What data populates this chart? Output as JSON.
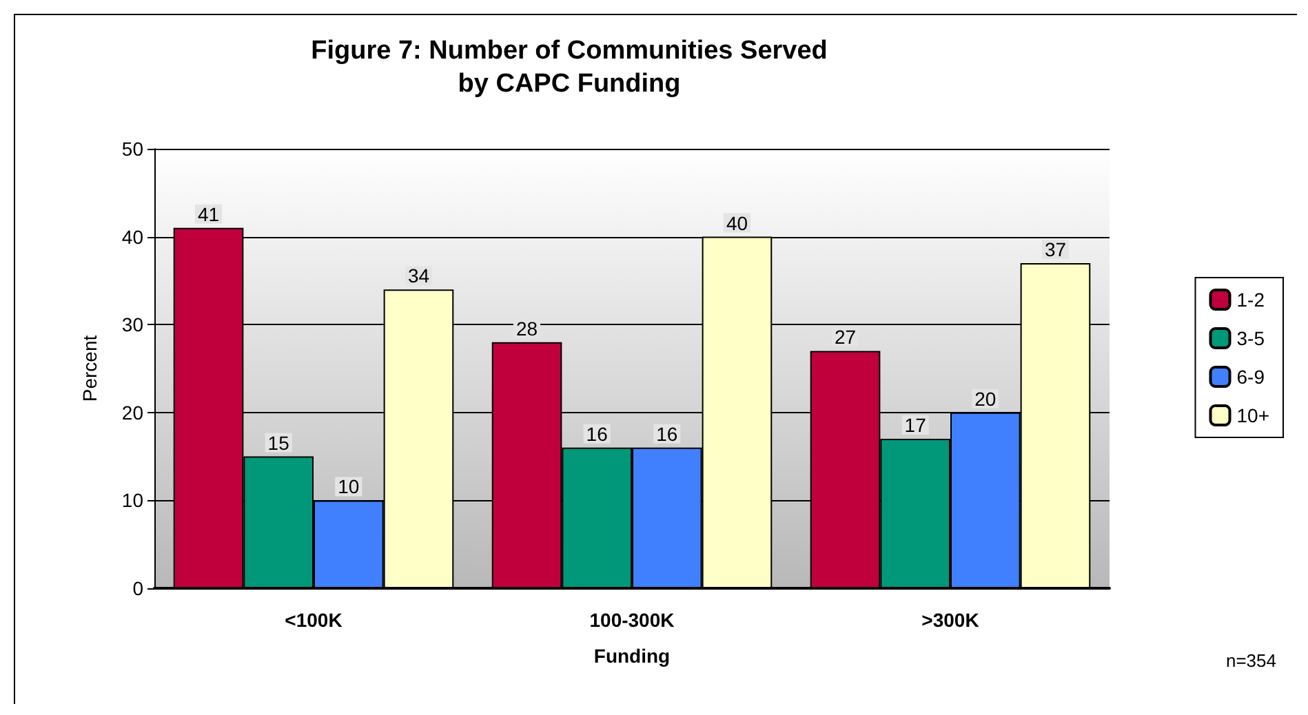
{
  "chart_data": {
    "type": "bar",
    "title": "Figure 7: Number of Communities Served\nby CAPC Funding",
    "xlabel": "Funding",
    "ylabel": "Percent",
    "categories": [
      "<100K",
      "100-300K",
      ">300K"
    ],
    "series": [
      {
        "name": "1-2",
        "color": "#c0003c",
        "values": [
          41,
          28,
          27
        ]
      },
      {
        "name": "3-5",
        "color": "#009878",
        "values": [
          15,
          16,
          17
        ]
      },
      {
        "name": "6-9",
        "color": "#4080ff",
        "values": [
          10,
          16,
          20
        ]
      },
      {
        "name": "10+",
        "color": "#ffffc8",
        "values": [
          34,
          40,
          37
        ]
      }
    ],
    "ylim": [
      0,
      50
    ],
    "yticks": [
      0,
      10,
      20,
      30,
      40,
      50
    ],
    "grid": "y",
    "legend": "right",
    "data_labels": true,
    "annotations": [
      "n=354"
    ]
  }
}
